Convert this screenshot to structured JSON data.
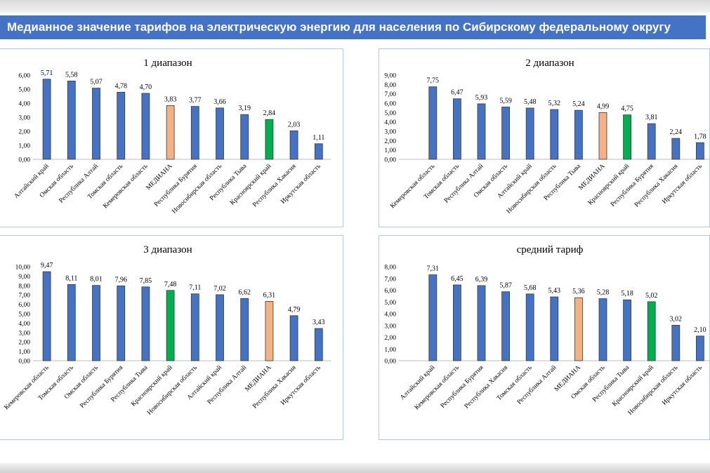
{
  "page_title": "Медианное значение тарифов на электрическую энергию для населения по Сибирскому федеральному округу",
  "colors": {
    "header": "#4472c4",
    "bar": "#4472c4",
    "median": "#f4b183",
    "krasnoyarsk": "#00b050",
    "panel_border": "#b4c7e7"
  },
  "chart_data": [
    {
      "type": "bar",
      "title": "1 диапазон",
      "ylim": [
        0,
        6
      ],
      "ystep": 1,
      "categories": [
        "Алтайский край",
        "Омская область",
        "Республика Алтай",
        "Томская область",
        "Кемеровская область",
        "МЕДИАНА",
        "Республика Бурятия",
        "Новосибирская область",
        "Республика Тыва",
        "Красноярский край",
        "Республика Хакасия",
        "Иркутская область"
      ],
      "values": [
        5.71,
        5.58,
        5.07,
        4.78,
        4.7,
        3.83,
        3.77,
        3.66,
        3.19,
        2.84,
        2.03,
        1.11
      ],
      "value_labels": [
        "5,71",
        "5,58",
        "5,07",
        "4,78",
        "4,70",
        "3,83",
        "3,77",
        "3,66",
        "3,19",
        "2,84",
        "2,03",
        "1,11"
      ],
      "tick_labels": [
        "0,00",
        "1,00",
        "2,00",
        "3,00",
        "4,00",
        "5,00",
        "6,00"
      ],
      "grid": false
    },
    {
      "type": "bar",
      "title": "2 диапазон",
      "ylim": [
        0,
        9
      ],
      "ystep": 1,
      "categories": [
        "Кемеровская область",
        "Томская область",
        "Республика Алтай",
        "Омская область",
        "Алтайский край",
        "Новосибирская область",
        "Республика Тыва",
        "МЕДИАНА",
        "Красноярский край",
        "Республика Бурятия",
        "Республика Хакасия",
        "Иркутская область"
      ],
      "values": [
        7.75,
        6.47,
        5.93,
        5.59,
        5.48,
        5.32,
        5.24,
        4.99,
        4.75,
        3.81,
        2.24,
        1.78
      ],
      "value_labels": [
        "7,75",
        "6,47",
        "5,93",
        "5,59",
        "5,48",
        "5,32",
        "5,24",
        "4,99",
        "4,75",
        "3,81",
        "2,24",
        "1,78"
      ],
      "tick_labels": [
        "0,00",
        "1,00",
        "2,00",
        "3,00",
        "4,00",
        "5,00",
        "6,00",
        "7,00",
        "8,00",
        "9,00"
      ],
      "grid": false
    },
    {
      "type": "bar",
      "title": "3 диапазон",
      "ylim": [
        0,
        10
      ],
      "ystep": 1,
      "categories": [
        "Кемеровская область",
        "Томская область",
        "Омская область",
        "Республика Бурятия",
        "Республика Тыва",
        "Красноярский край",
        "Новосибирская область",
        "Алтайский край",
        "Республика Алтай",
        "МЕДИАНА",
        "Республика Хакасия",
        "Иркутская область"
      ],
      "values": [
        9.47,
        8.11,
        8.01,
        7.96,
        7.85,
        7.48,
        7.11,
        7.02,
        6.62,
        6.31,
        4.79,
        3.43
      ],
      "value_labels": [
        "9,47",
        "8,11",
        "8,01",
        "7,96",
        "7,85",
        "7,48",
        "7,11",
        "7,02",
        "6,62",
        "6,31",
        "4,79",
        "3,43"
      ],
      "tick_labels": [
        "0,00",
        "1,00",
        "2,00",
        "3,00",
        "4,00",
        "5,00",
        "6,00",
        "7,00",
        "8,00",
        "9,00",
        "10,00"
      ],
      "grid": false
    },
    {
      "type": "bar",
      "title": "средний тариф",
      "ylim": [
        0,
        8
      ],
      "ystep": 1,
      "categories": [
        "Алтайский край",
        "Кемеровская область",
        "Республика Бурятия",
        "Республика Хакасия",
        "Томская область",
        "Республика Алтай",
        "МЕДИАНА",
        "Омская область",
        "Республика Тыва",
        "Красноярский край",
        "Новосибирская область",
        "Иркутская область"
      ],
      "values": [
        7.31,
        6.45,
        6.39,
        5.87,
        5.68,
        5.43,
        5.36,
        5.28,
        5.18,
        5.02,
        3.02,
        2.1
      ],
      "value_labels": [
        "7,31",
        "6,45",
        "6,39",
        "5,87",
        "5,68",
        "5,43",
        "5,36",
        "5,28",
        "5,18",
        "5,02",
        "3,02",
        "2,10"
      ],
      "tick_labels": [
        "0,00",
        "1,00",
        "2,00",
        "3,00",
        "4,00",
        "5,00",
        "6,00",
        "7,00",
        "8,00"
      ],
      "grid": false
    }
  ]
}
